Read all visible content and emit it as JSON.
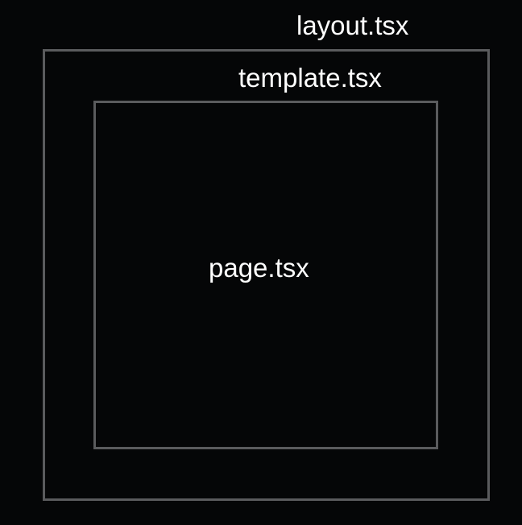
{
  "diagram": {
    "layout_label": "layout.tsx",
    "template_label": "template.tsx",
    "page_label": "page.tsx"
  },
  "colors": {
    "background": "#050607",
    "border": "#5a5b5d",
    "text": "#ffffff"
  }
}
